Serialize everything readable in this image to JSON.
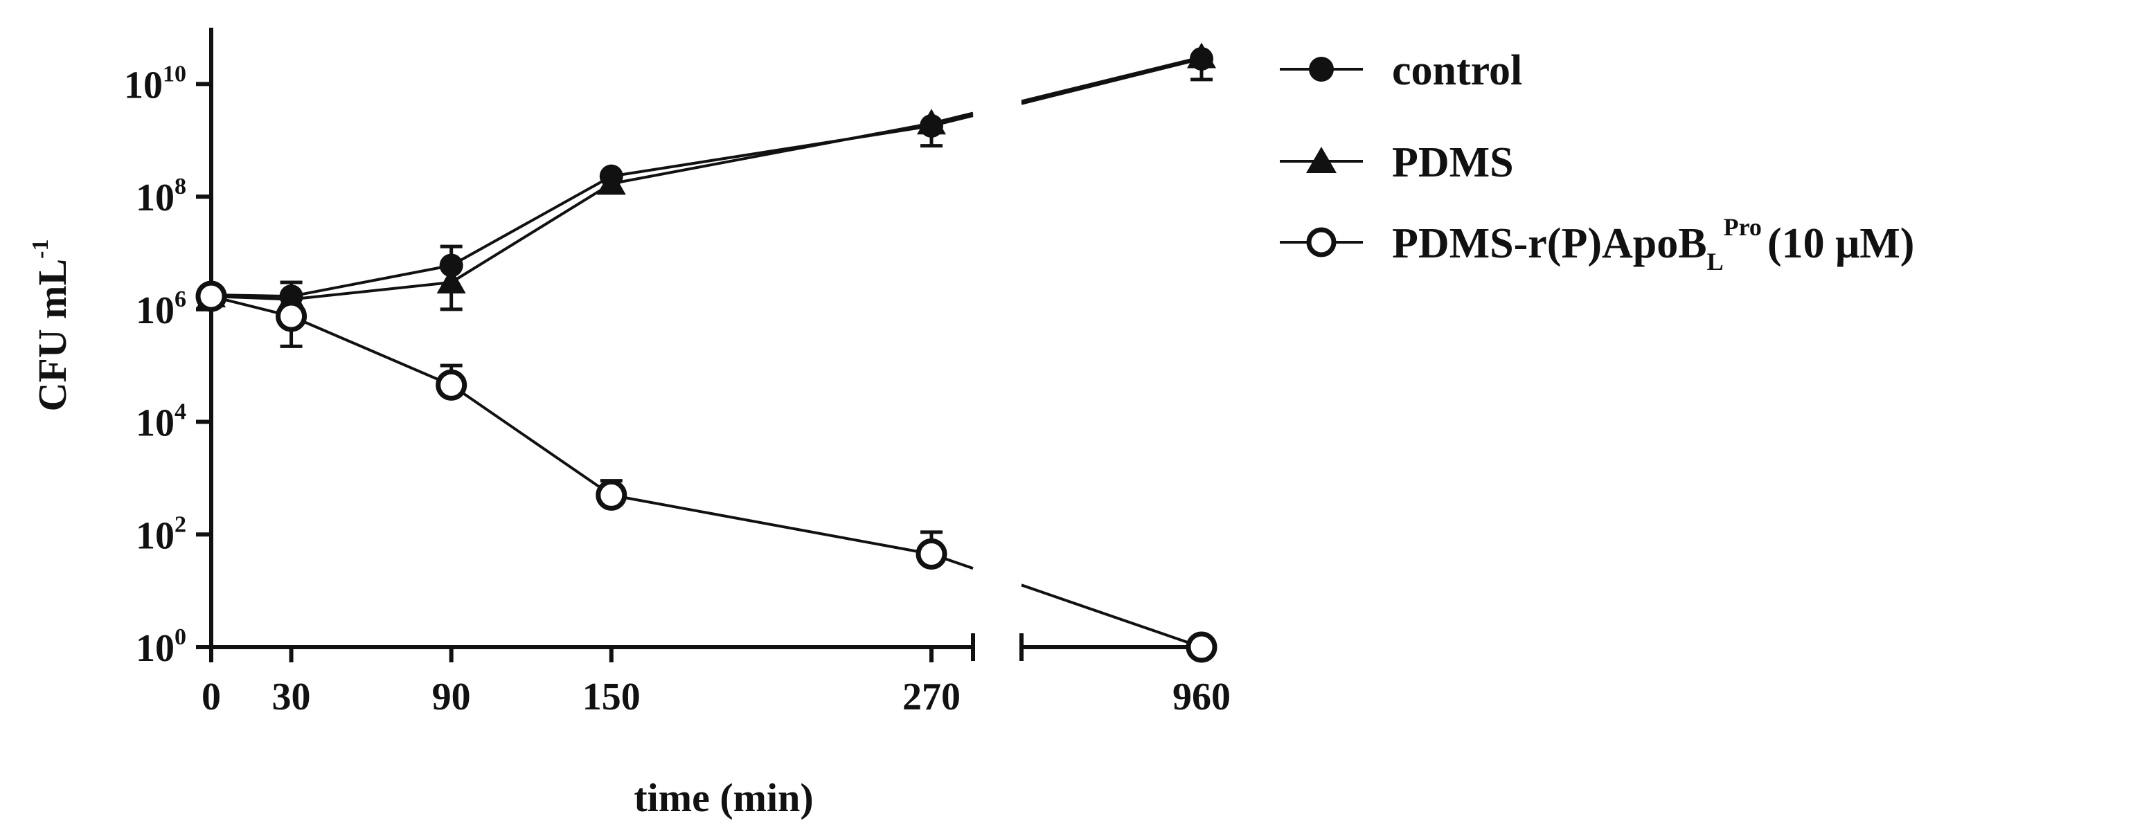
{
  "chart_data": {
    "type": "line",
    "xlabel": "time (min)",
    "ylabel": {
      "base": "CFU mL",
      "exp": "-1"
    },
    "y_scale": "log10",
    "ylim": [
      1,
      100000000000
    ],
    "x_axis_break": {
      "after": 270,
      "before": 960
    },
    "x_ticks": [
      0,
      30,
      90,
      150,
      270,
      960
    ],
    "y_ticks": [
      {
        "base": "10",
        "exp": "0",
        "value": 1
      },
      {
        "base": "10",
        "exp": "2",
        "value": 100
      },
      {
        "base": "10",
        "exp": "4",
        "value": 10000
      },
      {
        "base": "10",
        "exp": "6",
        "value": 1000000
      },
      {
        "base": "10",
        "exp": "8",
        "value": 100000000
      },
      {
        "base": "10",
        "exp": "10",
        "value": 10000000000
      }
    ],
    "legend_position": "right",
    "series": [
      {
        "name": "control",
        "marker": "filled-circle",
        "points": [
          {
            "x": 0,
            "y": 1800000,
            "err_hi": null,
            "err_lo": null
          },
          {
            "x": 30,
            "y": 1700000,
            "err_hi": 3000000,
            "err_lo": null
          },
          {
            "x": 90,
            "y": 6000000,
            "err_hi": 13000000,
            "err_lo": null
          },
          {
            "x": 150,
            "y": 230000000,
            "err_hi": null,
            "err_lo": null
          },
          {
            "x": 270,
            "y": 1800000000,
            "err_hi": null,
            "err_lo": null
          },
          {
            "x": 960,
            "y": 28000000000,
            "err_hi": null,
            "err_lo": null
          }
        ]
      },
      {
        "name": "PDMS",
        "marker": "filled-triangle",
        "points": [
          {
            "x": 0,
            "y": 1700000,
            "err_hi": null,
            "err_lo": null
          },
          {
            "x": 30,
            "y": 1500000,
            "err_hi": null,
            "err_lo": null
          },
          {
            "x": 90,
            "y": 3000000,
            "err_hi": null,
            "err_lo": 1000000
          },
          {
            "x": 150,
            "y": 170000000,
            "err_hi": null,
            "err_lo": null
          },
          {
            "x": 270,
            "y": 2000000000,
            "err_hi": null,
            "err_lo": 800000000
          },
          {
            "x": 960,
            "y": 30000000000,
            "err_hi": null,
            "err_lo": 12000000000
          }
        ]
      },
      {
        "name": {
          "main": "PDMS-r(P)ApoB",
          "sub": "L",
          "sup": "Pro",
          "tail": "(10 μM)"
        },
        "marker": "open-circle",
        "points": [
          {
            "x": 0,
            "y": 1700000,
            "err_hi": null,
            "err_lo": null
          },
          {
            "x": 30,
            "y": 750000,
            "err_hi": 1600000,
            "err_lo": 220000
          },
          {
            "x": 90,
            "y": 45000,
            "err_hi": 100000,
            "err_lo": null
          },
          {
            "x": 150,
            "y": 500,
            "err_hi": 900,
            "err_lo": null
          },
          {
            "x": 270,
            "y": 45,
            "err_hi": 110,
            "err_lo": null
          },
          {
            "x": 960,
            "y": 1,
            "err_hi": null,
            "err_lo": null
          }
        ]
      }
    ]
  }
}
